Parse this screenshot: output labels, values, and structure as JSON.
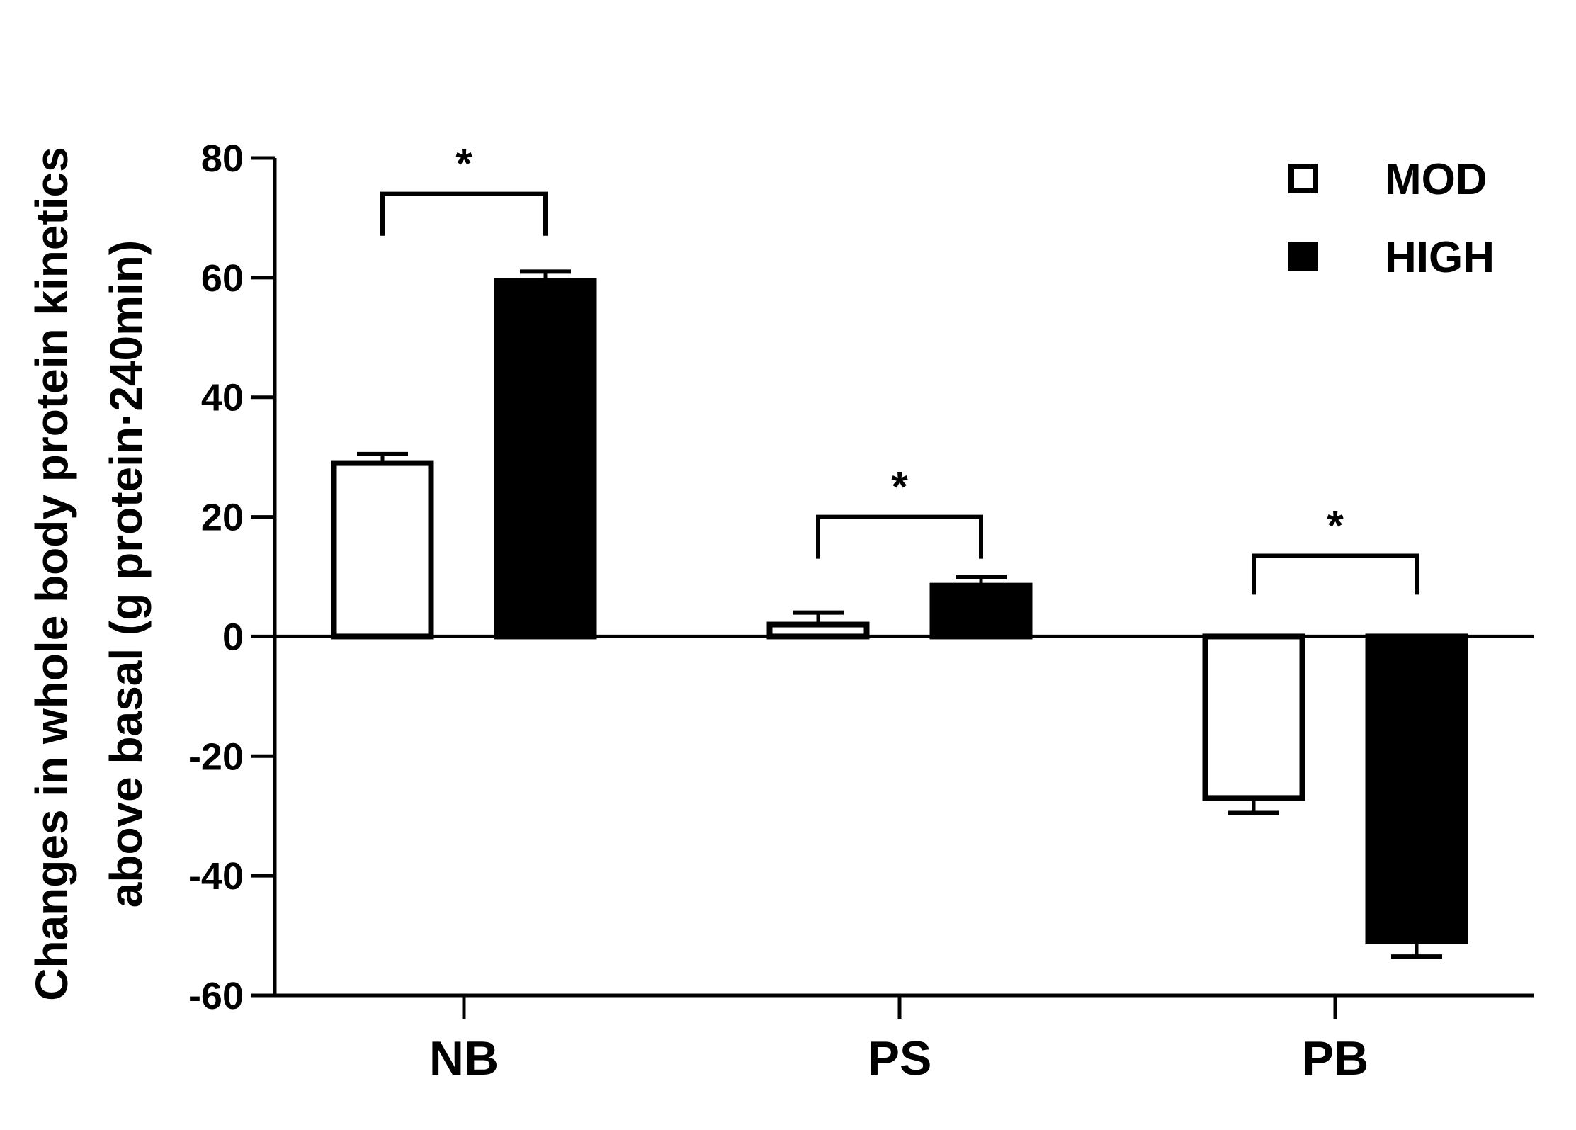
{
  "chart_data": {
    "type": "bar",
    "categories": [
      "NB",
      "PS",
      "PB"
    ],
    "series": [
      {
        "name": "MOD",
        "fill": "#ffffff",
        "stroke": "#000000",
        "values": [
          29,
          2,
          -27
        ],
        "errors": [
          1.5,
          2,
          2.5
        ]
      },
      {
        "name": "HIGH",
        "fill": "#000000",
        "stroke": "#000000",
        "values": [
          59.5,
          8.5,
          -51
        ],
        "errors": [
          1.5,
          1.5,
          2.5
        ]
      }
    ],
    "ylim": [
      -60,
      80
    ],
    "yticks": [
      80,
      60,
      40,
      20,
      0,
      -20,
      -40,
      -60
    ],
    "ylabel_lines": [
      "Changes in whole body protein kinetics",
      "above basal (g protein·240min)"
    ],
    "legend_position": "top-right",
    "significance": [
      {
        "category": "NB",
        "label": "*",
        "bracket_y": 74,
        "drop_y": 67
      },
      {
        "category": "PS",
        "label": "*",
        "bracket_y": 20,
        "drop_y": 13
      },
      {
        "category": "PB",
        "label": "*",
        "bracket_y": 13.5,
        "drop_y": 7
      }
    ]
  }
}
